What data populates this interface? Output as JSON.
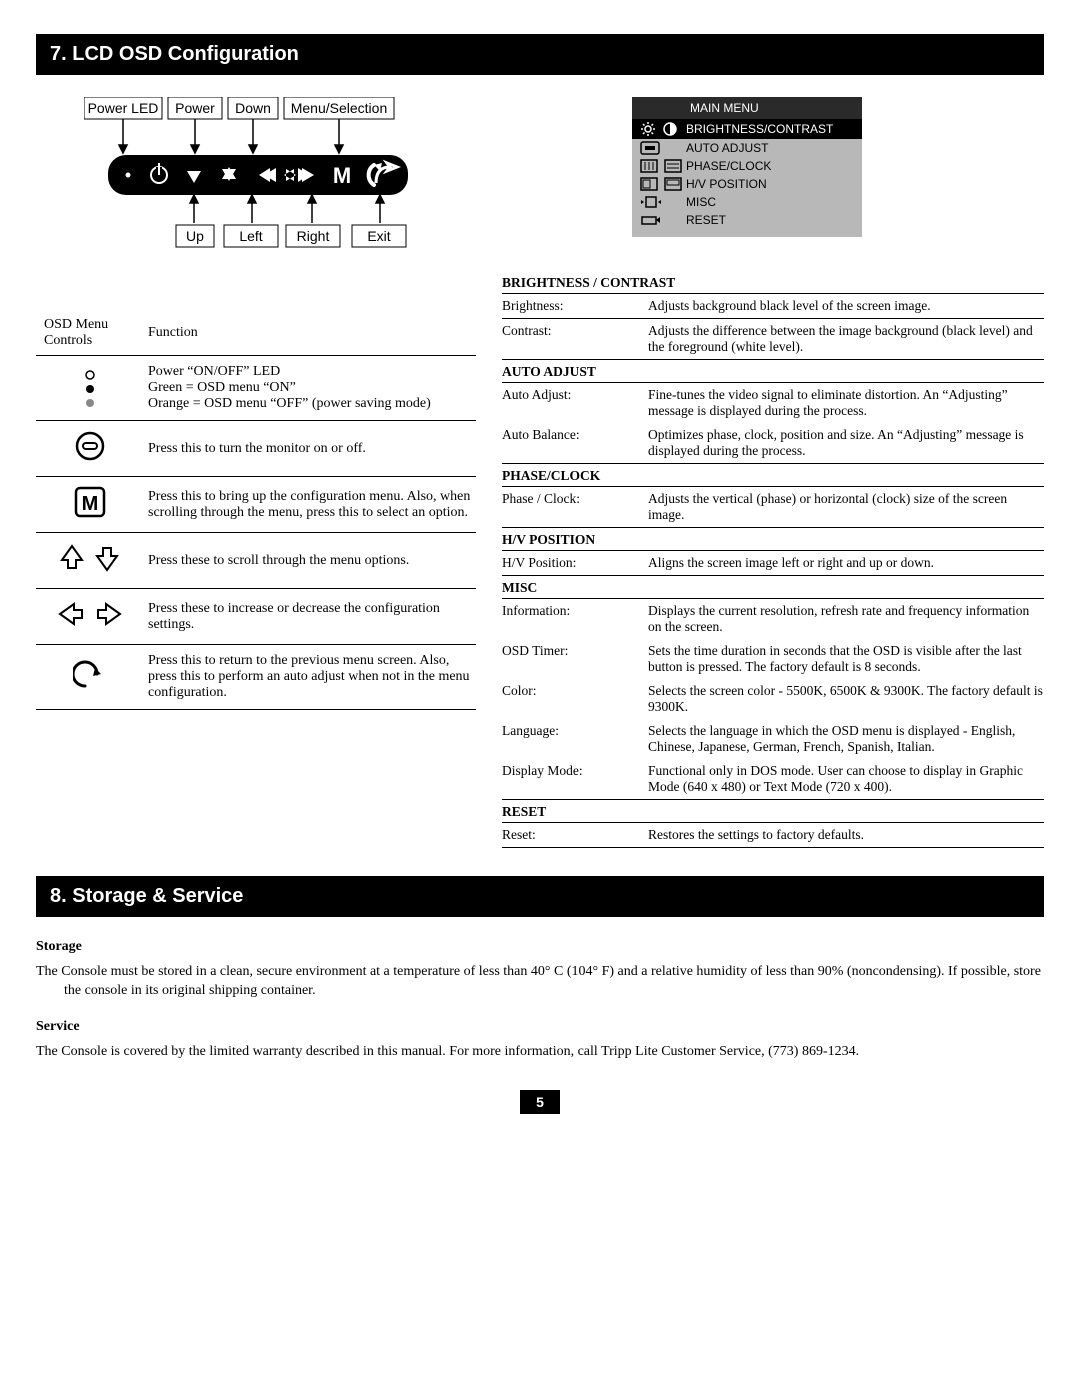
{
  "section7": {
    "title": "7. LCD OSD Configuration"
  },
  "section8": {
    "title": "8. Storage & Service"
  },
  "diagram": {
    "top_labels": [
      "Power LED",
      "Power",
      "Down",
      "Menu/Selection"
    ],
    "bottom_labels": [
      "Up",
      "Left",
      "Right",
      "Exit"
    ]
  },
  "osd_menu": {
    "title": "MAIN MENU",
    "rows": [
      {
        "label": "BRIGHTNESS/CONTRAST",
        "selected": true
      },
      {
        "label": "AUTO ADJUST",
        "selected": false
      },
      {
        "label": "PHASE/CLOCK",
        "selected": false
      },
      {
        "label": "H/V POSITION",
        "selected": false
      },
      {
        "label": "MISC",
        "selected": false
      },
      {
        "label": "RESET",
        "selected": false
      }
    ]
  },
  "ctl_table": {
    "h1": "OSD Menu Controls",
    "h2": "Function",
    "rows": [
      {
        "desc": [
          "Power “ON/OFF” LED",
          "Green = OSD menu “ON”",
          "Orange = OSD menu “OFF” (power saving mode)"
        ]
      },
      {
        "desc": [
          "Press this to turn the monitor on or off."
        ]
      },
      {
        "desc": [
          "Press this to bring up the configuration menu. Also, when scrolling through the menu, press this to select an option."
        ]
      },
      {
        "desc": [
          "Press these to scroll through the menu options."
        ]
      },
      {
        "desc": [
          "Press these to increase or decrease the configuration settings."
        ]
      },
      {
        "desc": [
          "Press this to return to the previous menu screen. Also, press this to perform an auto adjust when not in the menu configuration."
        ]
      }
    ]
  },
  "desc": {
    "sections": [
      {
        "title": "BRIGHTNESS / CONTRAST",
        "items": [
          {
            "label": "Brightness:",
            "text": "Adjusts background black level of the screen image."
          },
          {
            "label": "Contrast:",
            "text": "Adjusts the difference between the image background (black level) and the foreground (white level)."
          }
        ]
      },
      {
        "title": "AUTO ADJUST",
        "items": [
          {
            "label": "Auto Adjust:",
            "text": "Fine-tunes the video signal to eliminate distortion. An “Adjusting” message is displayed during the process.",
            "nobord": true
          },
          {
            "label": "Auto Balance:",
            "text": "Optimizes phase, clock, position and size. An “Adjusting” message is displayed during the process."
          }
        ]
      },
      {
        "title": "PHASE/CLOCK",
        "items": [
          {
            "label": "Phase / Clock:",
            "text": "Adjusts the vertical (phase) or horizontal (clock) size of the screen image."
          }
        ]
      },
      {
        "title": "H/V POSITION",
        "items": [
          {
            "label": "H/V Position:",
            "text": "Aligns the screen image left or right and up or down."
          }
        ]
      },
      {
        "title": "MISC",
        "items": [
          {
            "label": "Information:",
            "text": "Displays the current resolution, refresh rate and frequency information on the screen.",
            "nobord": true
          },
          {
            "label": "OSD Timer:",
            "text": "Sets the time duration in seconds that the OSD is visible after the last button is pressed. The factory default is 8 seconds.",
            "nobord": true
          },
          {
            "label": "Color:",
            "text": "Selects the screen color - 5500K, 6500K & 9300K. The factory default is 9300K.",
            "nobord": true
          },
          {
            "label": "Language:",
            "text": "Selects the language in which the OSD menu is displayed - English, Chinese, Japanese, German, French, Spanish, Italian.",
            "nobord": true
          },
          {
            "label": "Display Mode:",
            "text": "Functional only in DOS mode. User can choose to display in Graphic Mode (640 x 480) or Text Mode (720 x 400)."
          }
        ]
      },
      {
        "title": "RESET",
        "items": [
          {
            "label": "Reset:",
            "text": "Restores the settings to factory defaults."
          }
        ]
      }
    ]
  },
  "storage": {
    "h": "Storage",
    "p": "The Console must be stored in a clean, secure environment at a temperature of less than 40° C (104° F) and a relative humidity of less than 90% (noncondensing). If possible, store the console in its original shipping container."
  },
  "service": {
    "h": "Service",
    "p": "The Console is covered by the limited warranty described in this manual. For more information, call Tripp Lite Customer Service, (773) 869-1234."
  },
  "page_number": "5"
}
